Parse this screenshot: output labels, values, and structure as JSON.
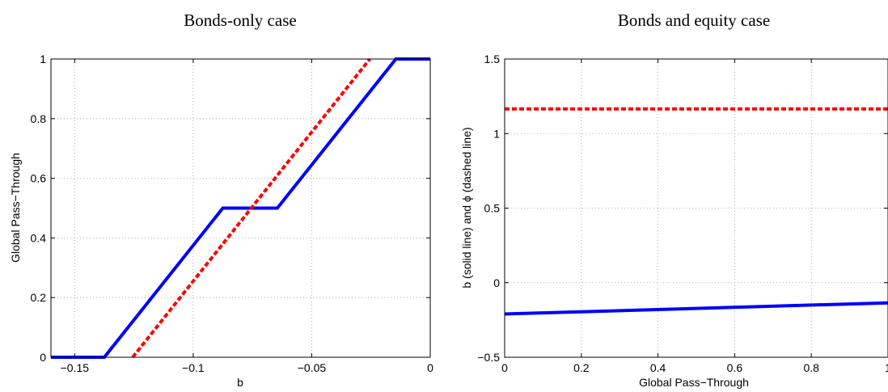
{
  "chart_data": [
    {
      "type": "line",
      "title": "Bonds-only case",
      "xlabel": "b",
      "ylabel": "Global Pass−Through",
      "xlim": [
        -0.16,
        0
      ],
      "ylim": [
        0,
        1
      ],
      "xticks": [
        -0.15,
        -0.1,
        -0.05,
        0
      ],
      "xtick_labels": [
        "−0.15",
        "−0.1",
        "−0.05",
        "0"
      ],
      "yticks": [
        0,
        0.2,
        0.4,
        0.6,
        0.8,
        1
      ],
      "ytick_labels": [
        "0",
        "0.2",
        "0.4",
        "0.6",
        "0.8",
        "1"
      ],
      "grid": true,
      "series": [
        {
          "style": "solid",
          "color": "#0000ff",
          "points": [
            [
              -0.16,
              0
            ],
            [
              -0.1375,
              0
            ],
            [
              -0.0875,
              0.5
            ],
            [
              -0.0645,
              0.5
            ],
            [
              -0.0145,
              1.0
            ],
            [
              0,
              1.0
            ]
          ]
        },
        {
          "style": "dashed",
          "color": "#ff0000",
          "points": [
            [
              -0.1255,
              0
            ],
            [
              -0.0255,
              1.0
            ]
          ]
        }
      ]
    },
    {
      "type": "line",
      "title": "Bonds and equity case",
      "xlabel": "Global Pass−Through",
      "ylabel": "b (solid line) and ϕ (dashed line)",
      "xlim": [
        0,
        1
      ],
      "ylim": [
        -0.5,
        1.5
      ],
      "xticks": [
        0,
        0.2,
        0.4,
        0.6,
        0.8,
        1
      ],
      "xtick_labels": [
        "0",
        "0.2",
        "0.4",
        "0.6",
        "0.8",
        "1"
      ],
      "yticks": [
        -0.5,
        0,
        0.5,
        1,
        1.5
      ],
      "ytick_labels": [
        "−0.5",
        "0",
        "0.5",
        "1",
        "1.5"
      ],
      "grid": true,
      "series": [
        {
          "style": "solid",
          "color": "#0000ff",
          "points": [
            [
              0,
              -0.21
            ],
            [
              1,
              -0.135
            ]
          ]
        },
        {
          "style": "dashed",
          "color": "#ff0000",
          "points": [
            [
              0,
              1.165
            ],
            [
              1,
              1.165
            ]
          ]
        }
      ]
    }
  ]
}
